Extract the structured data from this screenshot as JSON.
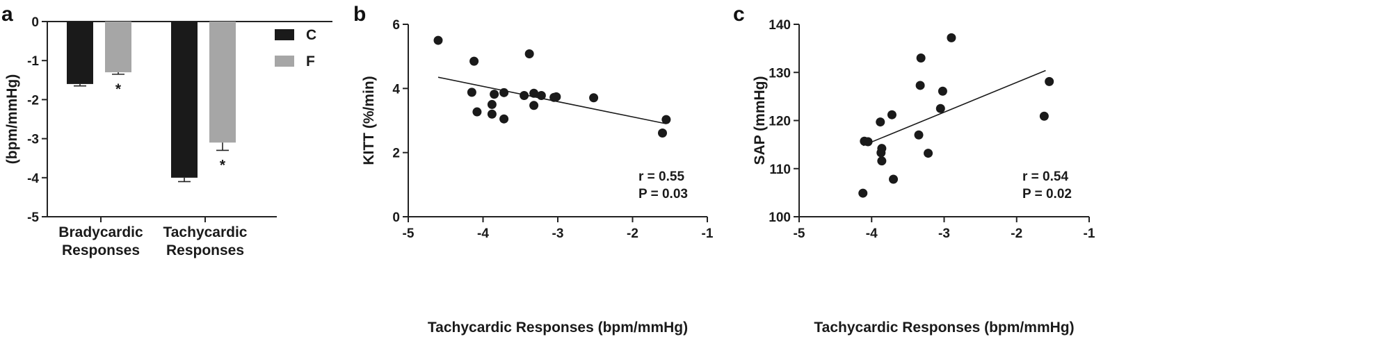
{
  "colors": {
    "C": "#1a1a1a",
    "F": "#a6a6a6",
    "point": "#1a1a1a",
    "line": "#1a1a1a"
  },
  "chart_data": [
    {
      "panel": "a",
      "type": "bar",
      "categories": [
        "Bradycardic Responses",
        "Tachycardic Responses"
      ],
      "category_lines": [
        [
          "Bradycardic",
          "Responses"
        ],
        [
          "Tachycardic",
          "Responses"
        ]
      ],
      "series": [
        {
          "name": "C",
          "values": [
            -1.6,
            -4.0
          ],
          "error": [
            0.05,
            0.1
          ],
          "sig": [
            false,
            false
          ]
        },
        {
          "name": "F",
          "values": [
            -1.3,
            -3.1
          ],
          "error": [
            0.05,
            0.2
          ],
          "sig": [
            true,
            true
          ]
        }
      ],
      "sig_marker": "*",
      "ylabel": "(bpm/mmHg)",
      "ylim": [
        -5,
        0
      ],
      "yticks": [
        "0",
        "-1",
        "-2",
        "-3",
        "-4",
        "-5"
      ],
      "legend_position": "right"
    },
    {
      "panel": "b",
      "type": "scatter",
      "xlabel": "Tachycardic Responses (bpm/mmHg)",
      "ylabel": "KITT (%/min)",
      "xlim": [
        -5,
        -1
      ],
      "ylim": [
        0,
        6
      ],
      "xticks": [
        "-5",
        "-4",
        "-3",
        "-2",
        "-1"
      ],
      "yticks": [
        "0",
        "2",
        "4",
        "6"
      ],
      "points": [
        [
          -4.6,
          5.5
        ],
        [
          -4.12,
          4.85
        ],
        [
          -3.38,
          5.08
        ],
        [
          -4.15,
          3.88
        ],
        [
          -3.85,
          3.82
        ],
        [
          -3.72,
          3.87
        ],
        [
          -3.88,
          3.5
        ],
        [
          -4.08,
          3.27
        ],
        [
          -3.88,
          3.2
        ],
        [
          -3.72,
          3.05
        ],
        [
          -3.45,
          3.78
        ],
        [
          -3.32,
          3.85
        ],
        [
          -3.22,
          3.78
        ],
        [
          -3.05,
          3.72
        ],
        [
          -3.02,
          3.74
        ],
        [
          -3.32,
          3.47
        ],
        [
          -2.52,
          3.71
        ],
        [
          -1.6,
          2.61
        ],
        [
          -1.55,
          3.03
        ]
      ],
      "fit": [
        [
          -4.6,
          4.35
        ],
        [
          -1.55,
          2.9
        ]
      ],
      "stats": [
        "r = 0.55",
        "P = 0.03"
      ]
    },
    {
      "panel": "c",
      "type": "scatter",
      "xlabel": "Tachycardic Responses (bpm/mmHg)",
      "ylabel": "SAP (mmHg)",
      "xlim": [
        -5,
        -1
      ],
      "ylim": [
        100,
        140
      ],
      "xticks": [
        "-5",
        "-4",
        "-3",
        "-2",
        "-1"
      ],
      "yticks": [
        "100",
        "110",
        "120",
        "130",
        "140"
      ],
      "points": [
        [
          -4.1,
          115.7
        ],
        [
          -4.05,
          115.6
        ],
        [
          -4.12,
          104.9
        ],
        [
          -3.88,
          119.7
        ],
        [
          -3.86,
          114.2
        ],
        [
          -3.87,
          113.3
        ],
        [
          -3.86,
          111.6
        ],
        [
          -3.72,
          121.2
        ],
        [
          -3.7,
          107.8
        ],
        [
          -3.32,
          133.0
        ],
        [
          -3.33,
          127.3
        ],
        [
          -3.35,
          117.0
        ],
        [
          -3.22,
          113.2
        ],
        [
          -3.02,
          126.1
        ],
        [
          -3.05,
          122.5
        ],
        [
          -2.9,
          137.2
        ],
        [
          -1.62,
          120.9
        ],
        [
          -1.55,
          128.1
        ]
      ],
      "fit": [
        [
          -4.12,
          114.8
        ],
        [
          -1.6,
          130.4
        ]
      ],
      "stats": [
        "r = 0.54",
        "P = 0.02"
      ]
    }
  ]
}
